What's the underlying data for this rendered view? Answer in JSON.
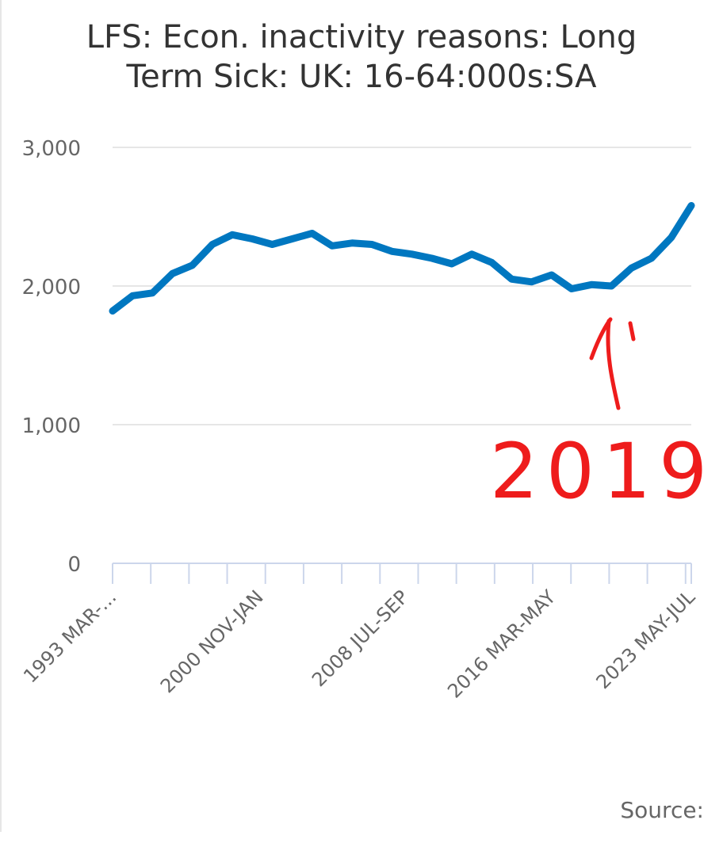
{
  "chart_data": {
    "type": "line",
    "title_lines": [
      "LFS: Econ. inactivity reasons: Long",
      "Term Sick: UK: 16-64:000s:SA"
    ],
    "series": [
      {
        "color": "#0077c0",
        "x_start": 1993.2,
        "x_end": 2023.5,
        "values": [
          1820,
          1930,
          1950,
          2090,
          2150,
          2300,
          2370,
          2340,
          2300,
          2340,
          2380,
          2290,
          2310,
          2300,
          2250,
          2230,
          2200,
          2160,
          2230,
          2170,
          2050,
          2030,
          2080,
          1980,
          2010,
          2000,
          2130,
          2200,
          2350,
          2580
        ]
      }
    ],
    "ylim": [
      0,
      3000
    ],
    "yticks": [
      "3,000",
      "2,000",
      "1,000",
      "0"
    ],
    "ytick_values": [
      3000,
      2000,
      1000,
      0
    ],
    "xtick_labels": [
      "1993 MAR-...",
      "2000 NOV-JAN",
      "2008 JUL-SEP",
      "2016 MAR-MAY",
      "2023 MAY-JUL"
    ],
    "xtick_positions": [
      1993.2,
      2000.9,
      2008.5,
      2016.2,
      2023.5
    ],
    "grid": true,
    "xlabel": "",
    "ylabel": ""
  },
  "annotation": {
    "text": "2019",
    "color": "#ee1c1c",
    "points_to_x": 2019.5
  },
  "source_text": "Source:"
}
